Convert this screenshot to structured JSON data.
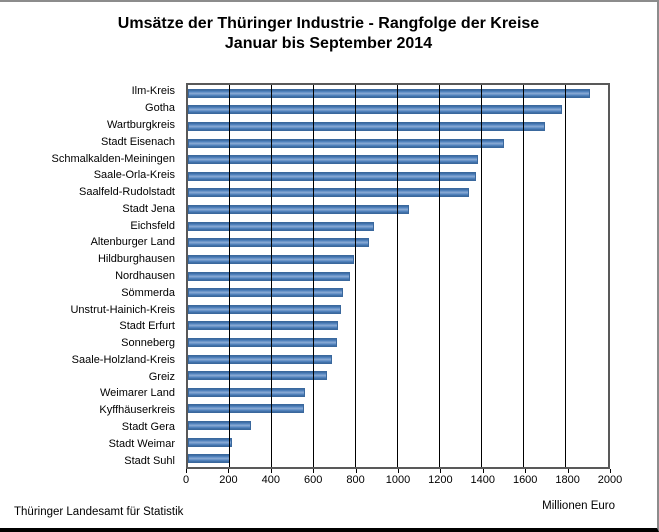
{
  "title": {
    "line1": "Umsätze der Thüringer Industrie - Rangfolge der Kreise",
    "line2": "Januar bis September 2014"
  },
  "unit_label": "Millionen Euro",
  "source": "Thüringer Landesamt für Statistik",
  "colors": {
    "bar": "#4f81bd",
    "bar_light": "#8cacd5",
    "bar_dark": "#3a689d",
    "grid": "#000000",
    "plot_border": "#595959"
  },
  "chart_data": {
    "type": "bar",
    "orientation": "horizontal",
    "title": "Umsätze der Thüringer Industrie - Rangfolge der Kreise Januar bis September 2014",
    "xlabel": "Millionen Euro",
    "ylabel": "",
    "xlim": [
      0,
      2000
    ],
    "x_ticks": [
      0,
      200,
      400,
      600,
      800,
      1000,
      1200,
      1400,
      1600,
      1800,
      2000
    ],
    "grid": true,
    "legend": false,
    "categories": [
      "Ilm-Kreis",
      "Gotha",
      "Wartburgkreis",
      "Stadt Eisenach",
      "Schmalkalden-Meiningen",
      "Saale-Orla-Kreis",
      "Saalfeld-Rudolstadt",
      "Stadt Jena",
      "Eichsfeld",
      "Altenburger Land",
      "Hildburghausen",
      "Nordhausen",
      "Sömmerda",
      "Unstrut-Hainich-Kreis",
      "Stadt Erfurt",
      "Sonneberg",
      "Saale-Holzland-Kreis",
      "Greiz",
      "Weimarer Land",
      "Kyffhäuserkreis",
      "Stadt Gera",
      "Stadt Weimar",
      "Stadt Suhl"
    ],
    "values": [
      1915,
      1780,
      1700,
      1505,
      1380,
      1370,
      1340,
      1050,
      885,
      860,
      790,
      770,
      740,
      730,
      715,
      710,
      685,
      660,
      555,
      550,
      300,
      210,
      200
    ]
  }
}
